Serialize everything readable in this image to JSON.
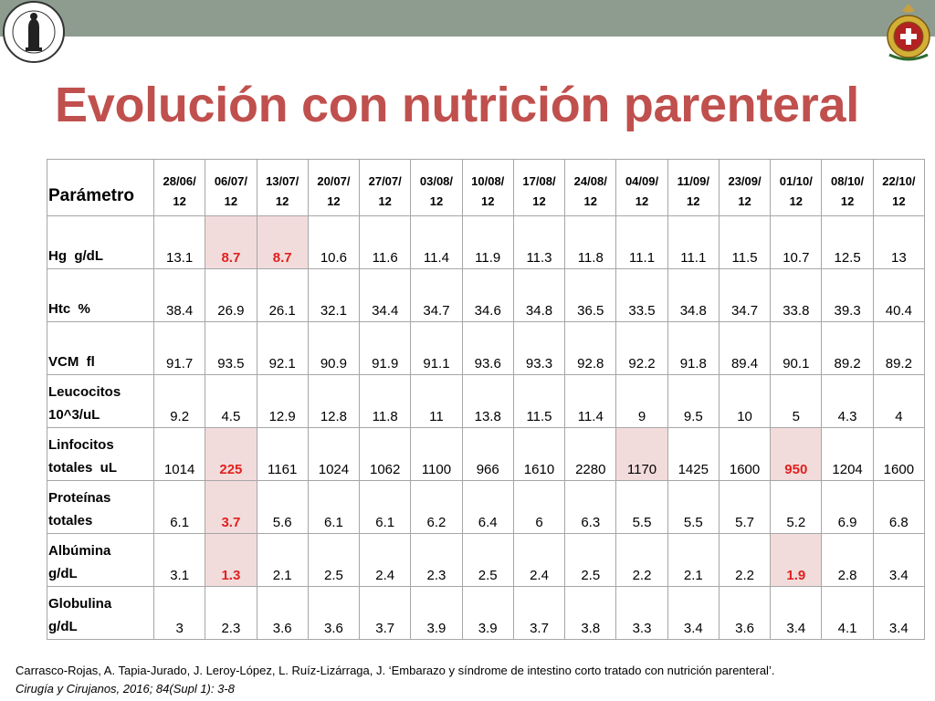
{
  "title": "Evolución con nutrición parenteral",
  "table": {
    "param_header": "Parámetro",
    "dates": [
      [
        "28/06/",
        "12"
      ],
      [
        "06/07/",
        "12"
      ],
      [
        "13/07/",
        "12"
      ],
      [
        "20/07/",
        "12"
      ],
      [
        "27/07/",
        "12"
      ],
      [
        "03/08/",
        "12"
      ],
      [
        "10/08/",
        "12"
      ],
      [
        "17/08/",
        "12"
      ],
      [
        "24/08/",
        "12"
      ],
      [
        "04/09/",
        "12"
      ],
      [
        "11/09/",
        "12"
      ],
      [
        "23/09/",
        "12"
      ],
      [
        "01/10/",
        "12"
      ],
      [
        "08/10/",
        "12"
      ],
      [
        "22/10/",
        "12"
      ]
    ],
    "rows": [
      {
        "label": [
          "Hg  g/dL"
        ],
        "values": [
          "13.1",
          "8.7",
          "8.7",
          "10.6",
          "11.6",
          "11.4",
          "11.9",
          "11.3",
          "11.8",
          "11.1",
          "11.1",
          "11.5",
          "10.7",
          "12.5",
          "13"
        ],
        "highlight": [
          1,
          2
        ],
        "highlight_bg": []
      },
      {
        "label": [
          "Htc  %"
        ],
        "values": [
          "38.4",
          "26.9",
          "26.1",
          "32.1",
          "34.4",
          "34.7",
          "34.6",
          "34.8",
          "36.5",
          "33.5",
          "34.8",
          "34.7",
          "33.8",
          "39.3",
          "40.4"
        ],
        "highlight": [],
        "highlight_bg": []
      },
      {
        "label": [
          "VCM  fl"
        ],
        "values": [
          "91.7",
          "93.5",
          "92.1",
          "90.9",
          "91.9",
          "91.1",
          "93.6",
          "93.3",
          "92.8",
          "92.2",
          "91.8",
          "89.4",
          "90.1",
          "89.2",
          "89.2"
        ],
        "highlight": [],
        "highlight_bg": []
      },
      {
        "label": [
          "Leucocitos",
          "10^3/uL"
        ],
        "values": [
          "9.2",
          "4.5",
          "12.9",
          "12.8",
          "11.8",
          "11",
          "13.8",
          "11.5",
          "11.4",
          "9",
          "9.5",
          "10",
          "5",
          "4.3",
          "4"
        ],
        "highlight": [],
        "highlight_bg": []
      },
      {
        "label": [
          "Linfocitos",
          "totales  uL"
        ],
        "values": [
          "1014",
          "225",
          "1161",
          "1024",
          "1062",
          "1100",
          "966",
          "1610",
          "2280",
          "1170",
          "1425",
          "1600",
          "950",
          "1204",
          "1600"
        ],
        "highlight": [
          1,
          12
        ],
        "highlight_bg": [
          9
        ]
      },
      {
        "label": [
          "Proteínas",
          "totales"
        ],
        "values": [
          "6.1",
          "3.7",
          "5.6",
          "6.1",
          "6.1",
          "6.2",
          "6.4",
          "6",
          "6.3",
          "5.5",
          "5.5",
          "5.7",
          "5.2",
          "6.9",
          "6.8"
        ],
        "highlight": [
          1
        ],
        "highlight_bg": []
      },
      {
        "label": [
          "Albúmina",
          "g/dL"
        ],
        "values": [
          "3.1",
          "1.3",
          "2.1",
          "2.5",
          "2.4",
          "2.3",
          "2.5",
          "2.4",
          "2.5",
          "2.2",
          "2.1",
          "2.2",
          "1.9",
          "2.8",
          "3.4"
        ],
        "highlight": [
          1,
          12
        ],
        "highlight_bg": []
      },
      {
        "label": [
          "Globulina",
          "g/dL"
        ],
        "values": [
          "3",
          "2.3",
          "3.6",
          "3.6",
          "3.7",
          "3.9",
          "3.9",
          "3.7",
          "3.8",
          "3.3",
          "3.4",
          "3.6",
          "3.4",
          "4.1",
          "3.4"
        ],
        "highlight": [],
        "highlight_bg": []
      }
    ],
    "row_heights": [
      58,
      58,
      58,
      58,
      58,
      58,
      58,
      58
    ]
  },
  "citation": {
    "authors": "Carrasco-Rojas, A. Tapia-Jurado, J. Leroy-López, L. Ruíz-Lizárraga, J. ‘Embarazo y síndrome de intestino corto tratado con nutrición parenteral’.",
    "journal": "Cirugía y Cirujanos, 2016; 84(Supl 1): 3-8"
  },
  "colors": {
    "title": "#c0504d",
    "top_bar": "#8e9c90",
    "highlight_bg": "#f2dcdb",
    "highlight_text": "#e02020"
  },
  "icons": {
    "left_logo": "academia-nacional-de-medicina-seal-icon",
    "right_logo": "medical-crest-icon"
  }
}
